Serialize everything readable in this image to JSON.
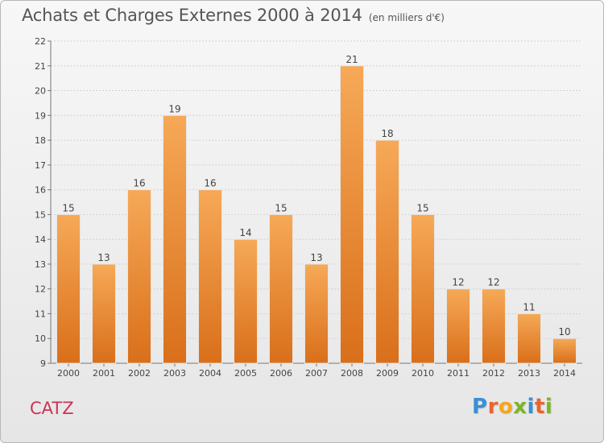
{
  "title": "Achats et Charges Externes 2000 à 2014",
  "subtitle": "(en milliers d'€)",
  "location": "CATZ",
  "brand": {
    "letters": [
      "P",
      "r",
      "o",
      "x",
      "i",
      "t",
      "i"
    ],
    "colors": [
      "#3a8fd6",
      "#e8652e",
      "#f2a81d",
      "#7ab528",
      "#3a8fd6",
      "#e8652e",
      "#7ab528"
    ]
  },
  "colors": {
    "bar_top": "#f6a957",
    "bar_bottom": "#d96f1a",
    "location": "#cc3355"
  },
  "chart_data": {
    "type": "bar",
    "categories": [
      "2000",
      "2001",
      "2002",
      "2003",
      "2004",
      "2005",
      "2006",
      "2007",
      "2008",
      "2009",
      "2010",
      "2011",
      "2012",
      "2013",
      "2014"
    ],
    "values": [
      15,
      13,
      16,
      19,
      16,
      14,
      15,
      13,
      21,
      18,
      15,
      12,
      12,
      11,
      10
    ],
    "ylim": [
      9,
      22
    ],
    "yticks": [
      9,
      10,
      11,
      12,
      13,
      14,
      15,
      16,
      17,
      18,
      19,
      20,
      21,
      22
    ],
    "grid": true
  }
}
